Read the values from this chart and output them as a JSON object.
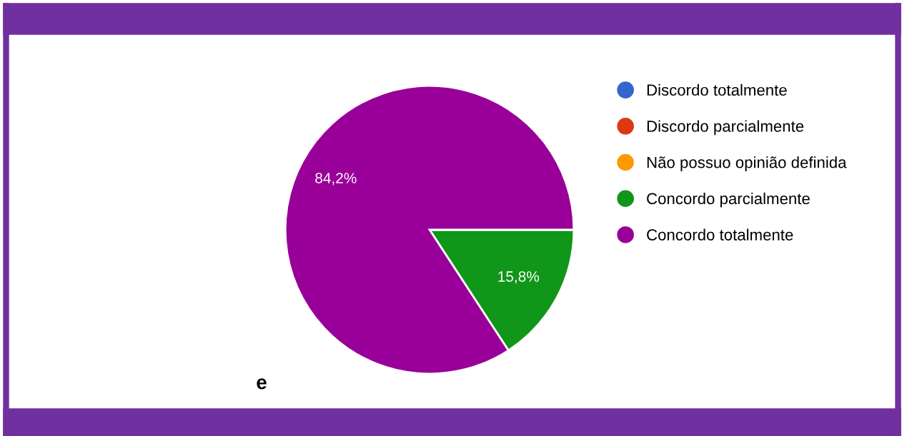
{
  "chart_data": {
    "type": "pie",
    "categories": [
      "Discordo totalmente",
      "Discordo parcialmente",
      "Não possuo opinião definida",
      "Concordo parcialmente",
      "Concordo totalmente"
    ],
    "values": [
      0,
      0,
      0,
      15.8,
      84.2
    ],
    "colors": [
      "#3366cc",
      "#dc3912",
      "#ff9900",
      "#109618",
      "#990099"
    ],
    "value_labels": [
      null,
      null,
      null,
      "15,8%",
      "84,2%"
    ],
    "legend": "right",
    "annotations": [
      "e"
    ]
  }
}
